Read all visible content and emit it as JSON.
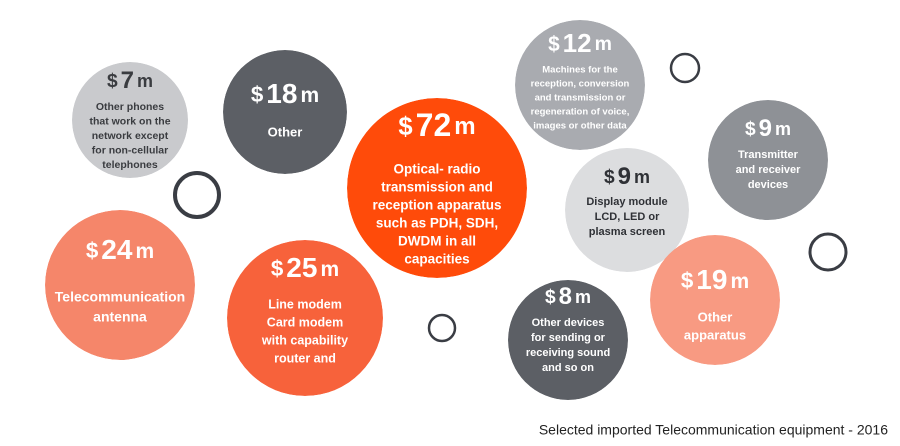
{
  "currency": "$",
  "unit": "m",
  "bubbles": [
    {
      "value": 7,
      "lines": [
        "Other phones",
        "that work on the",
        "network except",
        "for non-cellular",
        "telephones"
      ]
    },
    {
      "value": 18,
      "lines": [
        "Other"
      ]
    },
    {
      "value": 72,
      "lines": [
        "Optical- radio",
        "transmission and",
        "reception apparatus",
        "such as PDH, SDH,",
        "DWDM in all",
        "capacities"
      ]
    },
    {
      "value": 12,
      "lines": [
        "Machines for the",
        "reception, conversion",
        "and transmission or",
        "regeneration of voice,",
        "images or other data"
      ]
    },
    {
      "value": 9,
      "lines": [
        "Transmitter",
        "and receiver",
        "devices"
      ]
    },
    {
      "value": 9,
      "lines": [
        "Display module",
        "LCD, LED or",
        "plasma screen"
      ]
    },
    {
      "value": 24,
      "lines": [
        "Telecommunication",
        "antenna"
      ]
    },
    {
      "value": 25,
      "lines": [
        "Line modem",
        "Card modem",
        "with capability",
        "router and"
      ]
    },
    {
      "value": 8,
      "lines": [
        "Other devices",
        "for sending or",
        "receiving sound",
        "and so on"
      ]
    },
    {
      "value": 19,
      "lines": [
        "Other",
        "apparatus"
      ]
    }
  ],
  "caption": "Selected imported Telecommunication equipment - 2016"
}
